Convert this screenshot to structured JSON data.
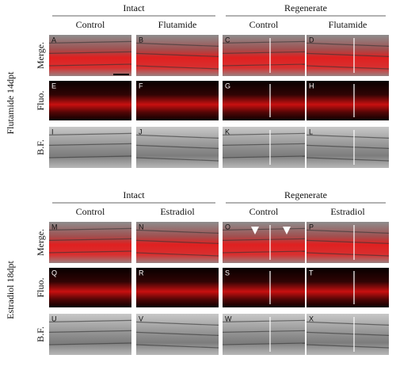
{
  "blocks": [
    {
      "side_label": "Flutamide 14dpt",
      "groups": [
        "Intact",
        "Regenerate"
      ],
      "columns": [
        "Control",
        "Flutamide",
        "Control",
        "Flutamide"
      ],
      "rows": [
        "Merge.",
        "Fluo.",
        "B.F."
      ],
      "panels": [
        [
          "A",
          "B",
          "C",
          "D"
        ],
        [
          "E",
          "F",
          "G",
          "H"
        ],
        [
          "I",
          "J",
          "K",
          "L"
        ]
      ]
    },
    {
      "side_label": "Estradiol 18dpt",
      "groups": [
        "Intact",
        "Regenerate"
      ],
      "columns": [
        "Control",
        "Estradiol",
        "Control",
        "Estradiol"
      ],
      "rows": [
        "Merge.",
        "Fluo.",
        "B.F."
      ],
      "panels": [
        [
          "M",
          "N",
          "O",
          "P"
        ],
        [
          "Q",
          "R",
          "S",
          "T"
        ],
        [
          "U",
          "V",
          "W",
          "X"
        ]
      ]
    }
  ]
}
